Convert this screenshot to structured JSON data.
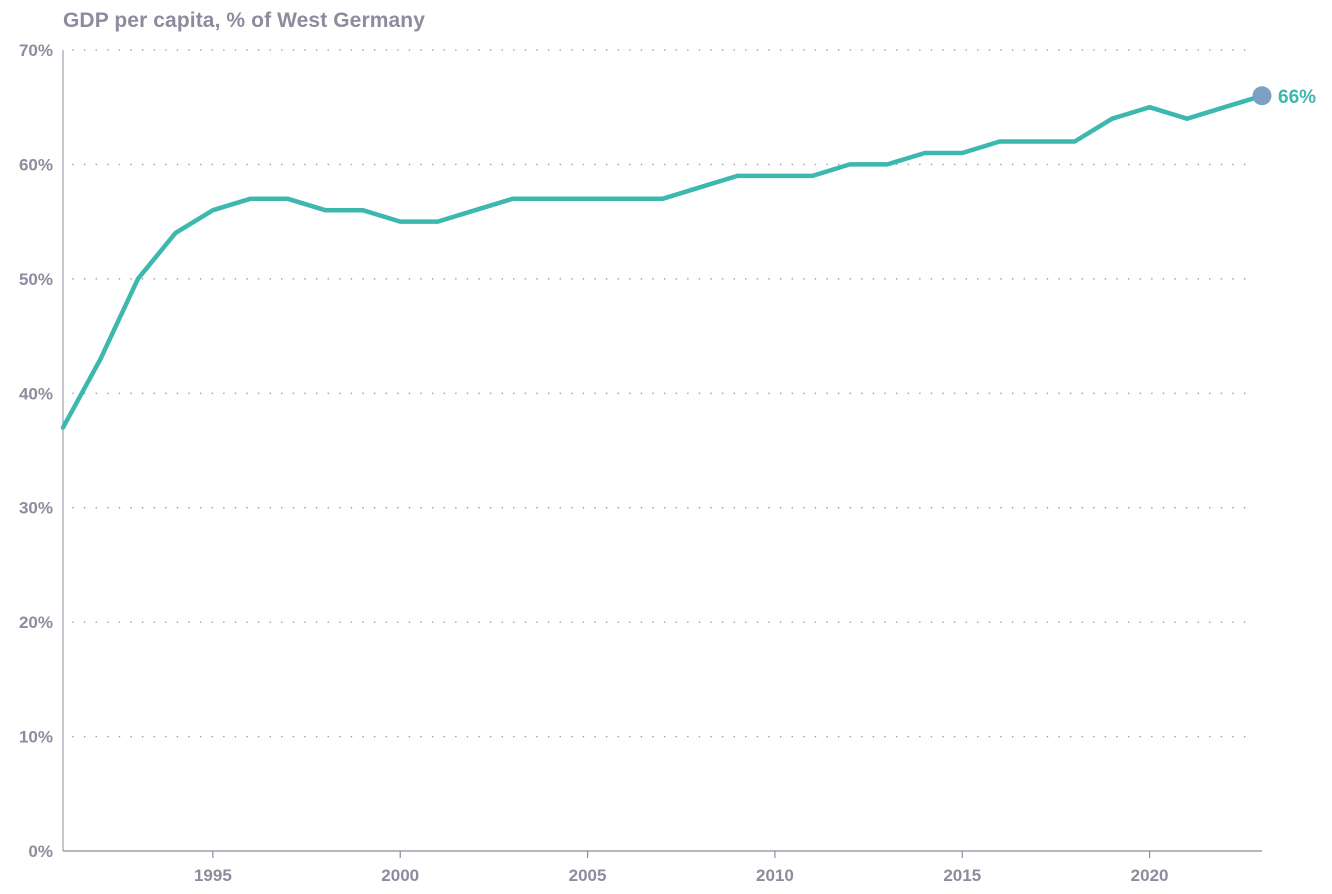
{
  "chart_data": {
    "type": "line",
    "title": "GDP per capita, % of West Germany",
    "xlabel": "",
    "ylabel": "",
    "xlim": [
      1991,
      2023
    ],
    "ylim": [
      0,
      70
    ],
    "x_ticks": [
      1995,
      2000,
      2005,
      2010,
      2015,
      2020
    ],
    "y_ticks": [
      "0%",
      "10%",
      "20%",
      "30%",
      "40%",
      "50%",
      "60%",
      "70%"
    ],
    "grid": "horizontal dotted",
    "series": [
      {
        "color": "#3cb8ae",
        "x": [
          1991,
          1992,
          1993,
          1994,
          1995,
          1996,
          1997,
          1998,
          1999,
          2000,
          2001,
          2002,
          2003,
          2004,
          2005,
          2006,
          2007,
          2008,
          2009,
          2010,
          2011,
          2012,
          2013,
          2014,
          2015,
          2016,
          2017,
          2018,
          2019,
          2020,
          2021,
          2022,
          2023
        ],
        "y": [
          37,
          43,
          50,
          54,
          56,
          57,
          57,
          56,
          56,
          55,
          55,
          56,
          57,
          57,
          57,
          57,
          57,
          58,
          59,
          59,
          59,
          60,
          60,
          61,
          61,
          62,
          62,
          62,
          64,
          65,
          64,
          65,
          66
        ]
      }
    ],
    "end_label": "66%",
    "end_marker_color": "#7e9fc4",
    "axis_color": "#8c8c9e",
    "grid_color": "#a0a0b0"
  }
}
